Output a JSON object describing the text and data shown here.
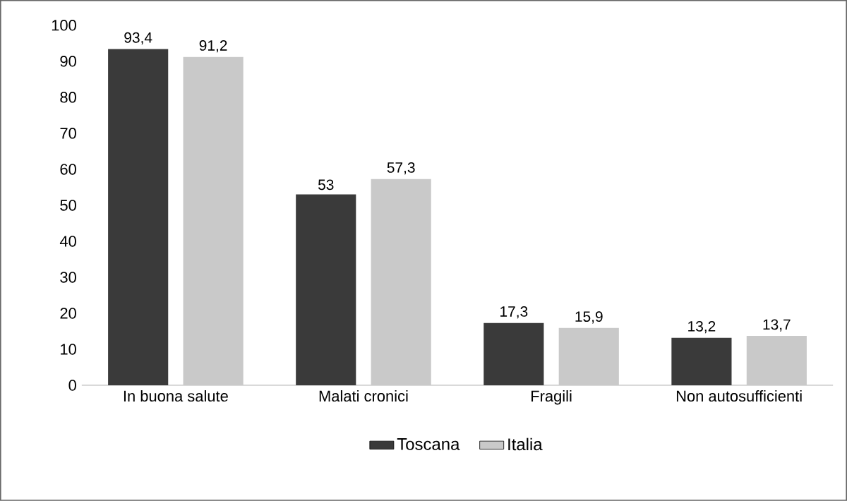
{
  "chart_data": {
    "type": "bar",
    "categories": [
      "In buona salute",
      "Malati cronici",
      "Fragili",
      "Non autosufficienti"
    ],
    "series": [
      {
        "name": "Toscana",
        "color": "#3a3a3a",
        "values": [
          93.4,
          53,
          17.3,
          13.2
        ],
        "value_labels": [
          "93,4",
          "53",
          "17,3",
          "13,2"
        ]
      },
      {
        "name": "Italia",
        "color": "#c9c9c9",
        "values": [
          91.2,
          57.3,
          15.9,
          13.7
        ],
        "value_labels": [
          "91,2",
          "57,3",
          "15,9",
          "13,7"
        ]
      }
    ],
    "ylim": [
      0,
      100
    ],
    "yticks": [
      0,
      10,
      20,
      30,
      40,
      50,
      60,
      70,
      80,
      90,
      100
    ],
    "grid": false,
    "legend": "bottom"
  }
}
